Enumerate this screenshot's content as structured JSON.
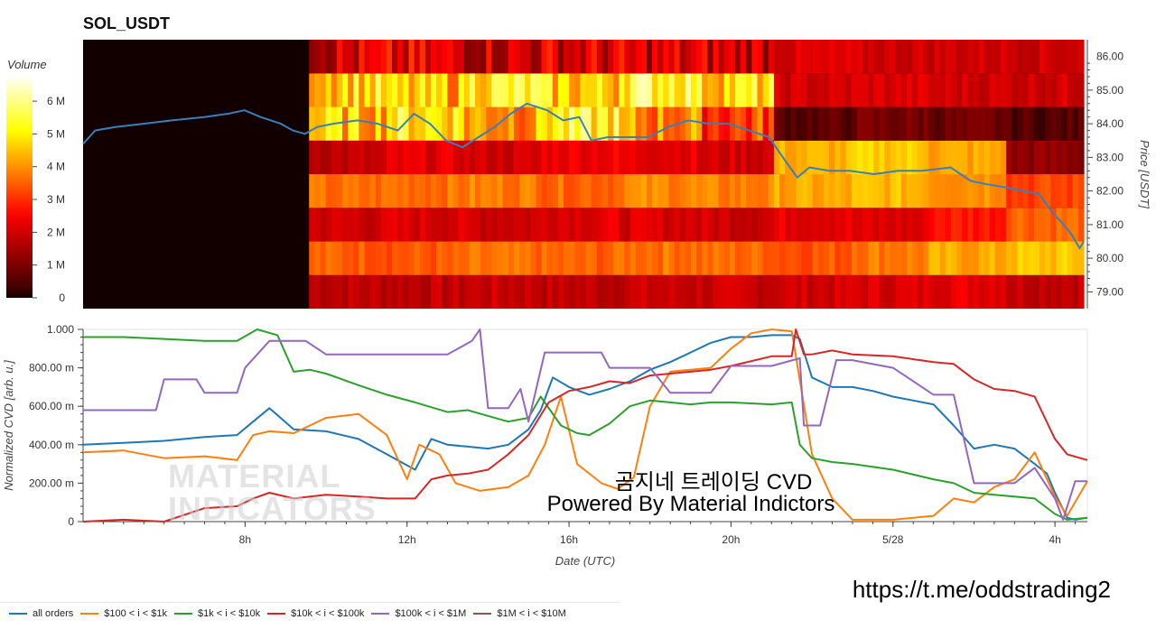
{
  "page": {
    "title": "SOL_USDT",
    "overlay_line1": "곰지네 트레이딩 CVD",
    "overlay_line2": "Powered By Material Indictors",
    "link": "https://t.me/oddstrading2",
    "watermark_line1": "MATERIAL",
    "watermark_line2": "INDICATORS"
  },
  "chart_data": [
    {
      "type": "heatmap",
      "title": "SOL_USDT",
      "colorbar_label": "Volume",
      "colorbar_ticks": [
        "0",
        "1 M",
        "2 M",
        "3 M",
        "4 M",
        "5 M",
        "6 M"
      ],
      "colorbar_range": [
        0,
        6.8
      ],
      "ylabel": "Price [USDT]",
      "ylim": [
        78.5,
        86.5
      ],
      "y_ticks": [
        "79.00",
        "80.00",
        "81.00",
        "82.00",
        "83.00",
        "84.00",
        "85.00",
        "86.00"
      ],
      "xlim": [
        4.0,
        28.8
      ],
      "price_bands": [
        79,
        80,
        81,
        82,
        83,
        84,
        85,
        86
      ],
      "heat_start_x": 9.6,
      "band_volumes_M": [
        [
          1.8,
          1.8,
          1.9,
          1.8,
          1.9,
          1.9,
          2.0,
          2.1,
          2.3,
          1.9
        ],
        [
          3.5,
          3.4,
          3.6,
          3.5,
          3.7,
          3.6,
          3.4,
          3.8,
          4.2,
          4.5
        ],
        [
          2.0,
          2.1,
          2.0,
          2.2,
          2.1,
          2.0,
          2.3,
          2.1,
          2.8,
          3.6
        ],
        [
          3.6,
          3.7,
          3.8,
          3.6,
          3.9,
          3.8,
          4.2,
          4.4,
          4.1,
          3.2
        ],
        [
          1.8,
          2.2,
          2.0,
          2.4,
          2.3,
          2.0,
          4.3,
          4.6,
          4.2,
          1.2
        ],
        [
          4.5,
          5.0,
          4.2,
          5.1,
          3.9,
          3.2,
          0.6,
          0.9,
          0.8,
          0.5
        ],
        [
          4.8,
          4.4,
          5.2,
          4.6,
          5.5,
          4.8,
          2.0,
          2.1,
          2.0,
          2.0
        ],
        [
          2.0,
          2.1,
          2.0,
          2.1,
          2.0,
          2.0,
          2.1,
          2.0,
          2.0,
          2.0
        ]
      ],
      "price_series": {
        "x": [
          4.0,
          4.3,
          4.8,
          5.5,
          6.2,
          7.0,
          7.6,
          8.0,
          8.4,
          8.9,
          9.2,
          9.5,
          9.8,
          10.2,
          10.8,
          11.3,
          11.8,
          12.2,
          12.6,
          13.0,
          13.4,
          13.8,
          14.2,
          14.6,
          15.0,
          15.5,
          15.9,
          16.3,
          16.6,
          17.0,
          17.5,
          18.0,
          18.5,
          19.0,
          19.5,
          20.0,
          20.5,
          21.0,
          21.4,
          21.7,
          22.0,
          22.5,
          23.0,
          23.6,
          24.2,
          24.8,
          25.5,
          26.0,
          26.4,
          26.9,
          27.3,
          27.7,
          28.0,
          28.3,
          28.5,
          28.7,
          28.8
        ],
        "y": [
          83.4,
          83.8,
          83.9,
          84.0,
          84.1,
          84.2,
          84.3,
          84.4,
          84.2,
          84.0,
          83.8,
          83.7,
          83.9,
          84.0,
          84.1,
          84.0,
          83.8,
          84.3,
          84.0,
          83.5,
          83.3,
          83.6,
          83.9,
          84.3,
          84.6,
          84.4,
          84.1,
          84.2,
          83.5,
          83.6,
          83.6,
          83.6,
          83.9,
          84.1,
          84.0,
          84.0,
          83.8,
          83.6,
          82.9,
          82.4,
          82.7,
          82.6,
          82.6,
          82.5,
          82.6,
          82.6,
          82.7,
          82.3,
          82.2,
          82.1,
          82.0,
          81.9,
          81.4,
          81.0,
          80.7,
          80.3,
          80.5
        ]
      }
    },
    {
      "type": "line",
      "xlabel": "Date (UTC)",
      "ylabel": "Normalized CVD [arb. u.]",
      "ylim": [
        0,
        1.0
      ],
      "xlim": [
        4.0,
        28.8
      ],
      "y_ticks": [
        "0",
        "200.00 m",
        "400.00 m",
        "600.00 m",
        "800.00 m",
        "1.000"
      ],
      "x_ticks": [
        {
          "x": 8,
          "label": "8h"
        },
        {
          "x": 12,
          "label": "12h"
        },
        {
          "x": 16,
          "label": "16h"
        },
        {
          "x": 20,
          "label": "20h"
        },
        {
          "x": 24,
          "label": "5/28"
        },
        {
          "x": 28,
          "label": "4h"
        }
      ],
      "legend_position": "bottom",
      "series": [
        {
          "name": "all orders",
          "color": "#1f77b4",
          "x": [
            4.0,
            5.0,
            6.0,
            7.0,
            7.8,
            8.2,
            8.6,
            9.2,
            10.0,
            10.8,
            11.5,
            12.2,
            12.6,
            13.0,
            13.5,
            14.0,
            14.5,
            15.0,
            15.3,
            15.6,
            16.0,
            16.5,
            17.0,
            17.5,
            18.0,
            18.5,
            19.0,
            19.5,
            20.0,
            20.5,
            21.0,
            21.5,
            21.7,
            22.0,
            22.5,
            23.0,
            23.5,
            24.0,
            24.5,
            25.0,
            25.5,
            26.0,
            26.5,
            27.0,
            27.5,
            27.8,
            28.0,
            28.3,
            28.5,
            28.8
          ],
          "y": [
            0.4,
            0.41,
            0.42,
            0.44,
            0.45,
            0.52,
            0.59,
            0.48,
            0.47,
            0.43,
            0.35,
            0.27,
            0.43,
            0.4,
            0.39,
            0.38,
            0.4,
            0.48,
            0.58,
            0.75,
            0.7,
            0.66,
            0.69,
            0.73,
            0.79,
            0.83,
            0.88,
            0.93,
            0.96,
            0.96,
            0.97,
            0.97,
            0.95,
            0.75,
            0.7,
            0.7,
            0.68,
            0.65,
            0.63,
            0.61,
            0.5,
            0.38,
            0.4,
            0.38,
            0.3,
            0.25,
            0.15,
            0.02,
            0.01,
            0.02
          ]
        },
        {
          "name": "$100 < i < $1k",
          "color": "#ff7f0e",
          "x": [
            4.0,
            5.0,
            6.0,
            7.0,
            7.8,
            8.2,
            8.6,
            9.2,
            10.0,
            10.8,
            11.5,
            12.0,
            12.3,
            12.8,
            13.2,
            13.8,
            14.5,
            15.0,
            15.4,
            15.8,
            16.2,
            16.8,
            17.2,
            17.6,
            18.0,
            18.5,
            19.0,
            19.5,
            20.0,
            20.5,
            21.0,
            21.5,
            22.0,
            22.5,
            23.0,
            24.0,
            25.0,
            25.5,
            26.0,
            26.5,
            27.0,
            27.5,
            28.0,
            28.3,
            28.8
          ],
          "y": [
            0.36,
            0.37,
            0.33,
            0.34,
            0.32,
            0.45,
            0.47,
            0.46,
            0.54,
            0.56,
            0.45,
            0.22,
            0.4,
            0.35,
            0.2,
            0.16,
            0.18,
            0.24,
            0.4,
            0.65,
            0.3,
            0.2,
            0.17,
            0.23,
            0.6,
            0.78,
            0.79,
            0.8,
            0.9,
            0.98,
            1.0,
            0.99,
            0.35,
            0.12,
            0.01,
            0.01,
            0.03,
            0.12,
            0.1,
            0.18,
            0.22,
            0.36,
            0.13,
            0.03,
            0.21
          ]
        },
        {
          "name": "$1k < i < $10k",
          "color": "#2ca02c",
          "x": [
            4.0,
            5.0,
            6.0,
            7.0,
            7.8,
            8.3,
            8.8,
            9.2,
            9.6,
            10.0,
            10.8,
            11.5,
            12.2,
            13.0,
            13.5,
            14.0,
            14.5,
            15.0,
            15.3,
            15.8,
            16.2,
            16.5,
            17.0,
            17.5,
            18.0,
            18.5,
            19.0,
            19.5,
            20.0,
            21.0,
            21.5,
            21.7,
            22.0,
            22.5,
            23.0,
            24.0,
            25.0,
            25.5,
            26.0,
            26.5,
            27.0,
            27.5,
            28.0,
            28.3,
            28.8
          ],
          "y": [
            0.96,
            0.96,
            0.95,
            0.94,
            0.94,
            1.0,
            0.97,
            0.78,
            0.79,
            0.77,
            0.71,
            0.66,
            0.62,
            0.57,
            0.58,
            0.55,
            0.52,
            0.54,
            0.65,
            0.5,
            0.46,
            0.45,
            0.51,
            0.6,
            0.63,
            0.62,
            0.61,
            0.62,
            0.62,
            0.61,
            0.62,
            0.4,
            0.33,
            0.31,
            0.3,
            0.27,
            0.22,
            0.2,
            0.15,
            0.14,
            0.13,
            0.12,
            0.04,
            0.01,
            0.02
          ]
        },
        {
          "name": "$10k < i < $100k",
          "color": "#d62728",
          "x": [
            4.0,
            5.0,
            6.0,
            7.0,
            7.8,
            8.2,
            8.6,
            9.2,
            10.0,
            10.8,
            11.5,
            12.2,
            12.6,
            13.0,
            13.5,
            14.0,
            14.5,
            15.0,
            15.5,
            16.0,
            16.5,
            17.0,
            17.5,
            18.0,
            18.5,
            19.0,
            19.5,
            20.0,
            21.0,
            21.5,
            21.6,
            21.8,
            22.0,
            22.5,
            23.0,
            24.0,
            25.0,
            25.5,
            26.0,
            26.5,
            27.0,
            27.5,
            28.0,
            28.3,
            28.8
          ],
          "y": [
            0.0,
            0.01,
            0.0,
            0.07,
            0.08,
            0.12,
            0.15,
            0.12,
            0.14,
            0.13,
            0.12,
            0.12,
            0.22,
            0.24,
            0.25,
            0.27,
            0.35,
            0.45,
            0.62,
            0.68,
            0.7,
            0.73,
            0.72,
            0.76,
            0.77,
            0.78,
            0.79,
            0.81,
            0.86,
            0.86,
            1.0,
            0.87,
            0.87,
            0.89,
            0.87,
            0.86,
            0.83,
            0.82,
            0.74,
            0.69,
            0.68,
            0.65,
            0.43,
            0.35,
            0.32
          ]
        },
        {
          "name": "$100k < i < $1M",
          "color": "#9467bd",
          "x": [
            4.0,
            5.0,
            5.8,
            6.0,
            6.8,
            7.0,
            7.8,
            8.0,
            8.6,
            8.8,
            9.5,
            10.0,
            10.5,
            12.0,
            13.0,
            13.6,
            13.8,
            14.0,
            14.5,
            14.8,
            15.0,
            15.4,
            15.8,
            16.0,
            16.8,
            17.0,
            17.5,
            18.0,
            18.5,
            19.0,
            19.5,
            20.0,
            21.0,
            21.7,
            21.8,
            22.2,
            22.6,
            23.0,
            24.0,
            25.0,
            25.5,
            26.0,
            26.5,
            27.0,
            27.5,
            28.0,
            28.2,
            28.5,
            28.8
          ],
          "y": [
            0.58,
            0.58,
            0.58,
            0.74,
            0.74,
            0.67,
            0.67,
            0.8,
            0.94,
            0.94,
            0.94,
            0.87,
            0.87,
            0.87,
            0.87,
            0.94,
            1.0,
            0.59,
            0.59,
            0.69,
            0.52,
            0.88,
            0.88,
            0.88,
            0.88,
            0.8,
            0.8,
            0.8,
            0.67,
            0.67,
            0.67,
            0.81,
            0.81,
            0.85,
            0.5,
            0.5,
            0.84,
            0.84,
            0.8,
            0.66,
            0.66,
            0.2,
            0.2,
            0.2,
            0.28,
            0.12,
            0.01,
            0.21,
            0.21
          ]
        },
        {
          "name": "$1M < i < $10M",
          "color": "#8c564b",
          "x": [],
          "y": []
        }
      ]
    }
  ]
}
